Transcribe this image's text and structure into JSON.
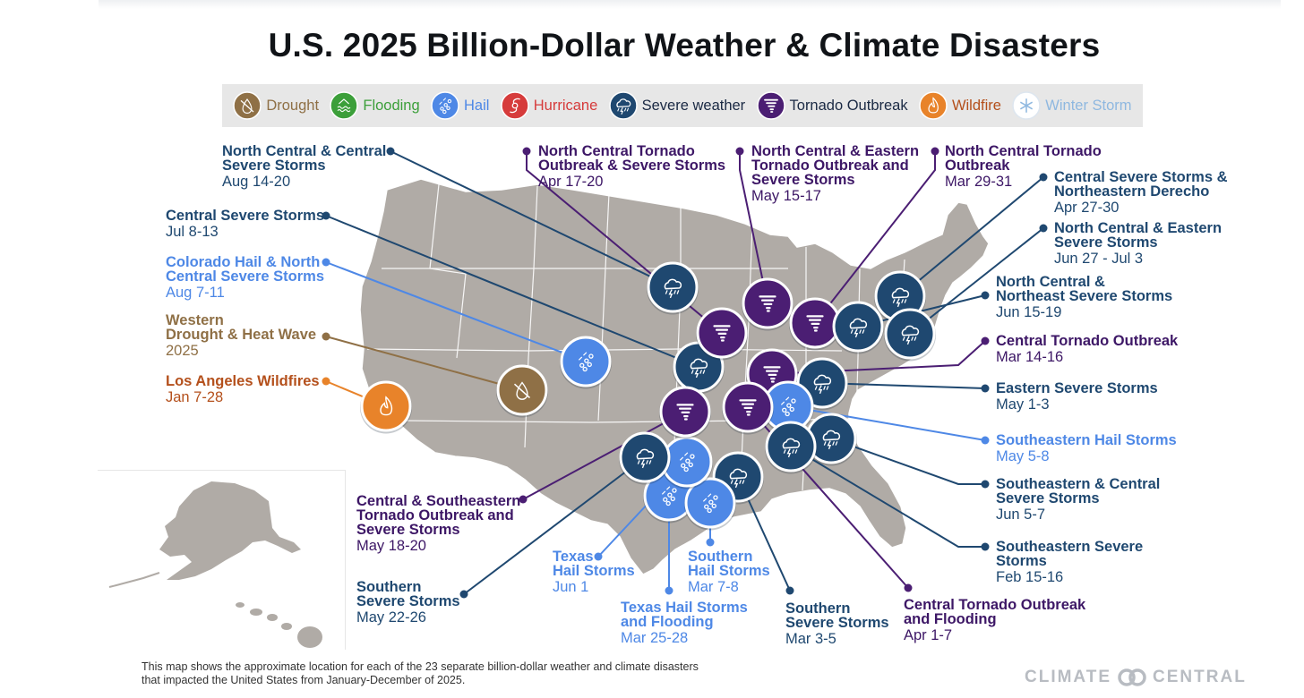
{
  "title": "U.S. 2025 Billion-Dollar Weather & Climate Disasters",
  "colors": {
    "land": "#b0aba6",
    "drought": "#8f7046",
    "flooding": "#3c9f3a",
    "hail": "#4e88e6",
    "hurricane": "#d63b3b",
    "severe": "#1f4870",
    "tornado": "#4b1e73",
    "wildfire": "#e8832a",
    "winter": "#8fb8e0"
  },
  "legend": [
    {
      "key": "drought",
      "label": "Drought",
      "color": "#8f7046",
      "icon": "drought-icon"
    },
    {
      "key": "flooding",
      "label": "Flooding",
      "color": "#3c9f3a",
      "icon": "flooding-icon"
    },
    {
      "key": "hail",
      "label": "Hail",
      "color": "#4e88e6",
      "icon": "hail-icon"
    },
    {
      "key": "hurricane",
      "label": "Hurricane",
      "color": "#d63b3b",
      "icon": "hurricane-icon"
    },
    {
      "key": "severe",
      "label": "Severe weather",
      "color": "#1f4870",
      "icon": "severe-weather-icon"
    },
    {
      "key": "tornado",
      "label": "Tornado Outbreak",
      "color": "#4b1e73",
      "icon": "tornado-icon"
    },
    {
      "key": "wildfire",
      "label": "Wildfire",
      "color": "#e8832a",
      "icon": "wildfire-icon"
    },
    {
      "key": "winter",
      "label": "Winter Storm",
      "color": "#8fb8e0",
      "icon": "winter-storm-icon"
    }
  ],
  "events": [
    {
      "title": "North Central & Central\nSevere Storms",
      "dates": "Aug 14-20",
      "type": "severe"
    },
    {
      "title": "Central Severe Storms",
      "dates": "Jul 8-13",
      "type": "severe"
    },
    {
      "title": "Colorado Hail & North\nCentral Severe Storms",
      "dates": "Aug 7-11",
      "type": "hail"
    },
    {
      "title": "Western\nDrought & Heat Wave",
      "dates": "2025",
      "type": "drought"
    },
    {
      "title": "Los Angeles Wildfires",
      "dates": "Jan 7-28",
      "type": "wildfire"
    },
    {
      "title": "North Central Tornado\nOutbreak & Severe Storms",
      "dates": "Apr 17-20",
      "type": "tornado"
    },
    {
      "title": "North Central & Eastern\nTornado Outbreak and\nSevere Storms",
      "dates": "May 15-17",
      "type": "tornado"
    },
    {
      "title": "North Central Tornado\nOutbreak",
      "dates": "Mar 29-31",
      "type": "tornado"
    },
    {
      "title": "Central Severe Storms &\nNortheastern Derecho",
      "dates": "Apr 27-30",
      "type": "severe"
    },
    {
      "title": "North Central & Eastern\nSevere Storms",
      "dates": "Jun 27 - Jul 3",
      "type": "severe"
    },
    {
      "title": "North Central &\nNortheast Severe Storms",
      "dates": "Jun 15-19",
      "type": "severe"
    },
    {
      "title": "Central Tornado Outbreak",
      "dates": "Mar 14-16",
      "type": "tornado"
    },
    {
      "title": "Eastern Severe Storms",
      "dates": "May 1-3",
      "type": "severe"
    },
    {
      "title": "Southeastern Hail Storms",
      "dates": "May 5-8",
      "type": "hail"
    },
    {
      "title": "Southeastern & Central\nSevere Storms",
      "dates": "Jun 5-7",
      "type": "severe"
    },
    {
      "title": "Southeastern Severe\nStorms",
      "dates": "Feb 15-16",
      "type": "severe"
    },
    {
      "title": "Central Tornado Outbreak\nand Flooding",
      "dates": "Apr 1-7",
      "type": "tornado"
    },
    {
      "title": "Southern\nSevere Storms",
      "dates": "Mar 3-5",
      "type": "severe"
    },
    {
      "title": "Texas Hail Storms\nand Flooding",
      "dates": "Mar 25-28",
      "type": "hail"
    },
    {
      "title": "Southern\nHail Storms",
      "dates": "Mar 7-8",
      "type": "hail"
    },
    {
      "title": "Texas\nHail Storms",
      "dates": "Jun 1",
      "type": "hail"
    },
    {
      "title": "Southern\nSevere Storms",
      "dates": "May 22-26",
      "type": "severe"
    },
    {
      "title": "Central & Southeastern\nTornado Outbreak and\nSevere Storms",
      "dates": "May 18-20",
      "type": "tornado"
    }
  ],
  "footnote": [
    "This map shows the approximate location for each of the 23 separate billion-dollar weather and climate disasters",
    "that impacted the United States from January-December of 2025."
  ],
  "brand": {
    "left": "CLIMATE",
    "right": "CENTRAL"
  }
}
